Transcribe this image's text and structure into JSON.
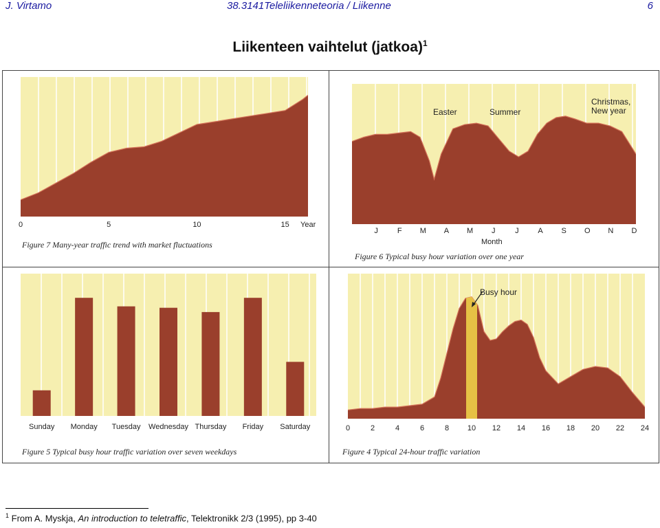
{
  "header": {
    "author": "J. Virtamo",
    "course": "38.3141Teleliikenneteoria / Liikenne",
    "page_number": "6"
  },
  "slide": {
    "title": "Liikenteen vaihtelut (jatkoa)",
    "title_footnote_marker": "1"
  },
  "footnote": {
    "marker": "1",
    "prefix": "From A. Myskja, ",
    "title": "An introduction to teletraffic",
    "suffix": ", Telektronikk 2/3 (1995),  pp 3-40"
  },
  "colors": {
    "fill": "#9a3f2c",
    "background": "#f6efb0",
    "gridline": "#ffffff",
    "highlight": "#f3d84a",
    "crest": "#d4735a"
  },
  "chart_data": [
    {
      "id": "figure7",
      "type": "area",
      "caption": "Figure 7  Many-year traffic trend with market fluctuations",
      "xlabel": "Year",
      "xticks": [
        "0",
        "5",
        "10",
        "15"
      ],
      "xlim": [
        0,
        16.3
      ],
      "ylim": [
        0,
        1
      ],
      "x": [
        0,
        1,
        2,
        3,
        4,
        5,
        6,
        7,
        8,
        9,
        10,
        11,
        12,
        13,
        14,
        15,
        16,
        16.3
      ],
      "values": [
        0.12,
        0.17,
        0.24,
        0.31,
        0.39,
        0.46,
        0.49,
        0.5,
        0.54,
        0.6,
        0.66,
        0.68,
        0.7,
        0.72,
        0.74,
        0.76,
        0.84,
        0.87
      ]
    },
    {
      "id": "figure6",
      "type": "area",
      "caption": "Figure 6  Typical busy hour variation over one year",
      "xlabel": "Month",
      "categories": [
        "J",
        "F",
        "M",
        "A",
        "M",
        "J",
        "J",
        "A",
        "S",
        "O",
        "N",
        "D"
      ],
      "xlim": [
        -0.5,
        11.6
      ],
      "ylim": [
        0,
        1
      ],
      "x": [
        -0.5,
        0,
        0.5,
        1,
        1.5,
        2,
        2.4,
        2.8,
        3,
        3.3,
        3.8,
        4.3,
        4.8,
        5.3,
        5.8,
        6.2,
        6.6,
        7,
        7.4,
        7.8,
        8.2,
        8.6,
        9,
        9.5,
        10,
        10.5,
        11,
        11.3,
        11.6
      ],
      "values": [
        0.59,
        0.62,
        0.64,
        0.64,
        0.65,
        0.66,
        0.62,
        0.45,
        0.32,
        0.5,
        0.68,
        0.71,
        0.72,
        0.7,
        0.6,
        0.52,
        0.48,
        0.52,
        0.64,
        0.72,
        0.76,
        0.77,
        0.75,
        0.72,
        0.72,
        0.7,
        0.66,
        0.58,
        0.5
      ],
      "annotations": [
        {
          "text": "Easter",
          "month": 3.2
        },
        {
          "text": "Summer",
          "month": 6.2
        },
        {
          "text": "Christmas, New year",
          "month": 10.6
        }
      ]
    },
    {
      "id": "figure5",
      "type": "bar",
      "caption": "Figure 5  Typical busy hour traffic variation over seven weekdays",
      "categories": [
        "Sunday",
        "Monday",
        "Tuesday",
        "Wednesday",
        "Thursday",
        "Friday",
        "Saturday"
      ],
      "values": [
        0.18,
        0.83,
        0.77,
        0.76,
        0.73,
        0.83,
        0.38
      ],
      "ylim": [
        0,
        1
      ]
    },
    {
      "id": "figure4",
      "type": "area",
      "caption": "Figure 4  Typical 24-hour traffic variation",
      "xticks": [
        "0",
        "2",
        "4",
        "6",
        "8",
        "10",
        "12",
        "14",
        "16",
        "18",
        "20",
        "22",
        "24"
      ],
      "xlim": [
        0,
        24
      ],
      "ylim": [
        0,
        1
      ],
      "x": [
        0,
        1,
        2,
        3,
        4,
        5,
        6,
        7,
        7.5,
        8,
        8.5,
        9,
        9.5,
        10,
        10.5,
        11,
        11.5,
        12,
        12.5,
        13,
        13.5,
        14,
        14.5,
        15,
        15.5,
        16,
        17,
        18,
        19,
        20,
        21,
        22,
        23,
        24
      ],
      "values": [
        0.06,
        0.07,
        0.07,
        0.08,
        0.08,
        0.09,
        0.1,
        0.15,
        0.28,
        0.45,
        0.62,
        0.76,
        0.83,
        0.84,
        0.78,
        0.6,
        0.54,
        0.55,
        0.6,
        0.64,
        0.67,
        0.68,
        0.65,
        0.56,
        0.42,
        0.33,
        0.24,
        0.29,
        0.34,
        0.36,
        0.35,
        0.29,
        0.18,
        0.08
      ],
      "highlight_hour": 10,
      "annotations": [
        {
          "text": "Busy hour",
          "hour": 10
        }
      ]
    }
  ]
}
